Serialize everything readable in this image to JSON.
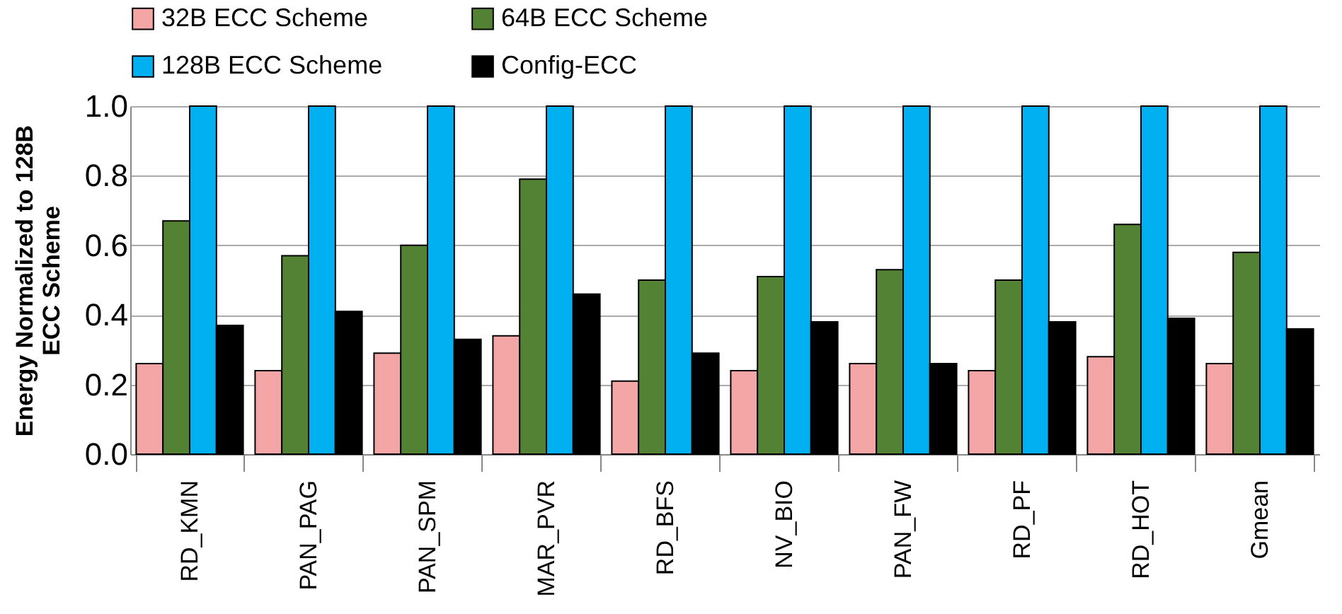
{
  "chart_data": {
    "type": "bar",
    "ylabel": "Energy Normalized to 128B ECC Scheme",
    "categories": [
      "RD_KMN",
      "PAN_PAG",
      "PAN_SPM",
      "MAR_PVR",
      "RD_BFS",
      "NV_BIO",
      "PAN_FW",
      "RD_PF",
      "RD_HOT",
      "Gmean"
    ],
    "series": [
      {
        "name": "32B ECC Scheme",
        "color": "#f4a6a6",
        "values": [
          0.26,
          0.24,
          0.29,
          0.34,
          0.21,
          0.24,
          0.26,
          0.24,
          0.28,
          0.26
        ]
      },
      {
        "name": "64B ECC Scheme",
        "color": "#548235",
        "values": [
          0.67,
          0.57,
          0.6,
          0.79,
          0.5,
          0.51,
          0.53,
          0.5,
          0.66,
          0.58
        ]
      },
      {
        "name": "128B ECC Scheme",
        "color": "#00b0f0",
        "values": [
          1.0,
          1.0,
          1.0,
          1.0,
          1.0,
          1.0,
          1.0,
          1.0,
          1.0,
          1.0
        ]
      },
      {
        "name": "Config-ECC",
        "color": "#000000",
        "values": [
          0.37,
          0.41,
          0.33,
          0.46,
          0.29,
          0.38,
          0.26,
          0.38,
          0.39,
          0.36
        ]
      }
    ],
    "ylim": [
      0,
      1.0
    ],
    "yticks": [
      {
        "value": 0,
        "label": "0.0"
      },
      {
        "value": 0.2,
        "label": "0.2"
      },
      {
        "value": 0.4,
        "label": "0.4"
      },
      {
        "value": 0.6,
        "label": "0.6"
      },
      {
        "value": 0.8,
        "label": "0.8"
      },
      {
        "value": 1.0,
        "label": "1.0"
      }
    ],
    "grid": "y",
    "legend": "top"
  }
}
